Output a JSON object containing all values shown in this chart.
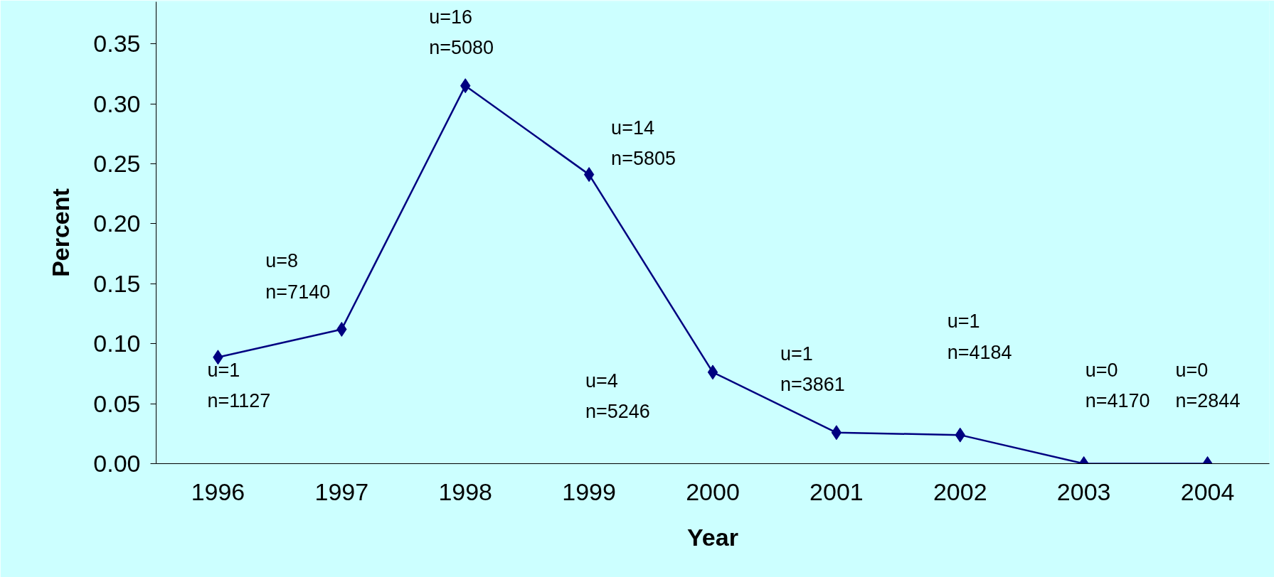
{
  "chart_data": {
    "type": "line",
    "xlabel": "Year",
    "ylabel": "Percent",
    "categories": [
      "1996",
      "1997",
      "1998",
      "1999",
      "2000",
      "2001",
      "2002",
      "2003",
      "2004"
    ],
    "series": [
      {
        "color": "#000080",
        "values": [
          0.0887,
          0.112,
          0.315,
          0.241,
          0.0762,
          0.0259,
          0.0239,
          0,
          0
        ]
      }
    ],
    "ylim": [
      0,
      0.385
    ],
    "yticks": [
      {
        "value": 0,
        "label": "0.00"
      },
      {
        "value": 0.05,
        "label": "0.05"
      },
      {
        "value": 0.1,
        "label": "0.10"
      },
      {
        "value": 0.15,
        "label": "0.15"
      },
      {
        "value": 0.2,
        "label": "0.20"
      },
      {
        "value": 0.25,
        "label": "0.25"
      },
      {
        "value": 0.3,
        "label": "0.30"
      },
      {
        "value": 0.35,
        "label": "0.35"
      }
    ],
    "grid": false,
    "marker": "diamond",
    "line_style": "solid",
    "annotations": [
      {
        "text": "u=1\nn=1127",
        "x": "1996",
        "y": 0.0887
      },
      {
        "text": "u=8\nn=7140",
        "x": "1997",
        "y": 0.112
      },
      {
        "text": "u=16\nn=5080",
        "x": "1998",
        "y": 0.315
      },
      {
        "text": "u=14\nn=5805",
        "x": "1999",
        "y": 0.241
      },
      "u=4\nn=5246",
      {
        "text": "u=1\nn=3861",
        "x": "2001",
        "y": 0.0259
      },
      "u=1\nn=4184",
      {
        "text": "u=0\nn=4170",
        "x": "2003",
        "y": 0
      },
      {
        "text": "u=0\nn=2844",
        "x": "2004",
        "y": 0
      }
    ]
  }
}
